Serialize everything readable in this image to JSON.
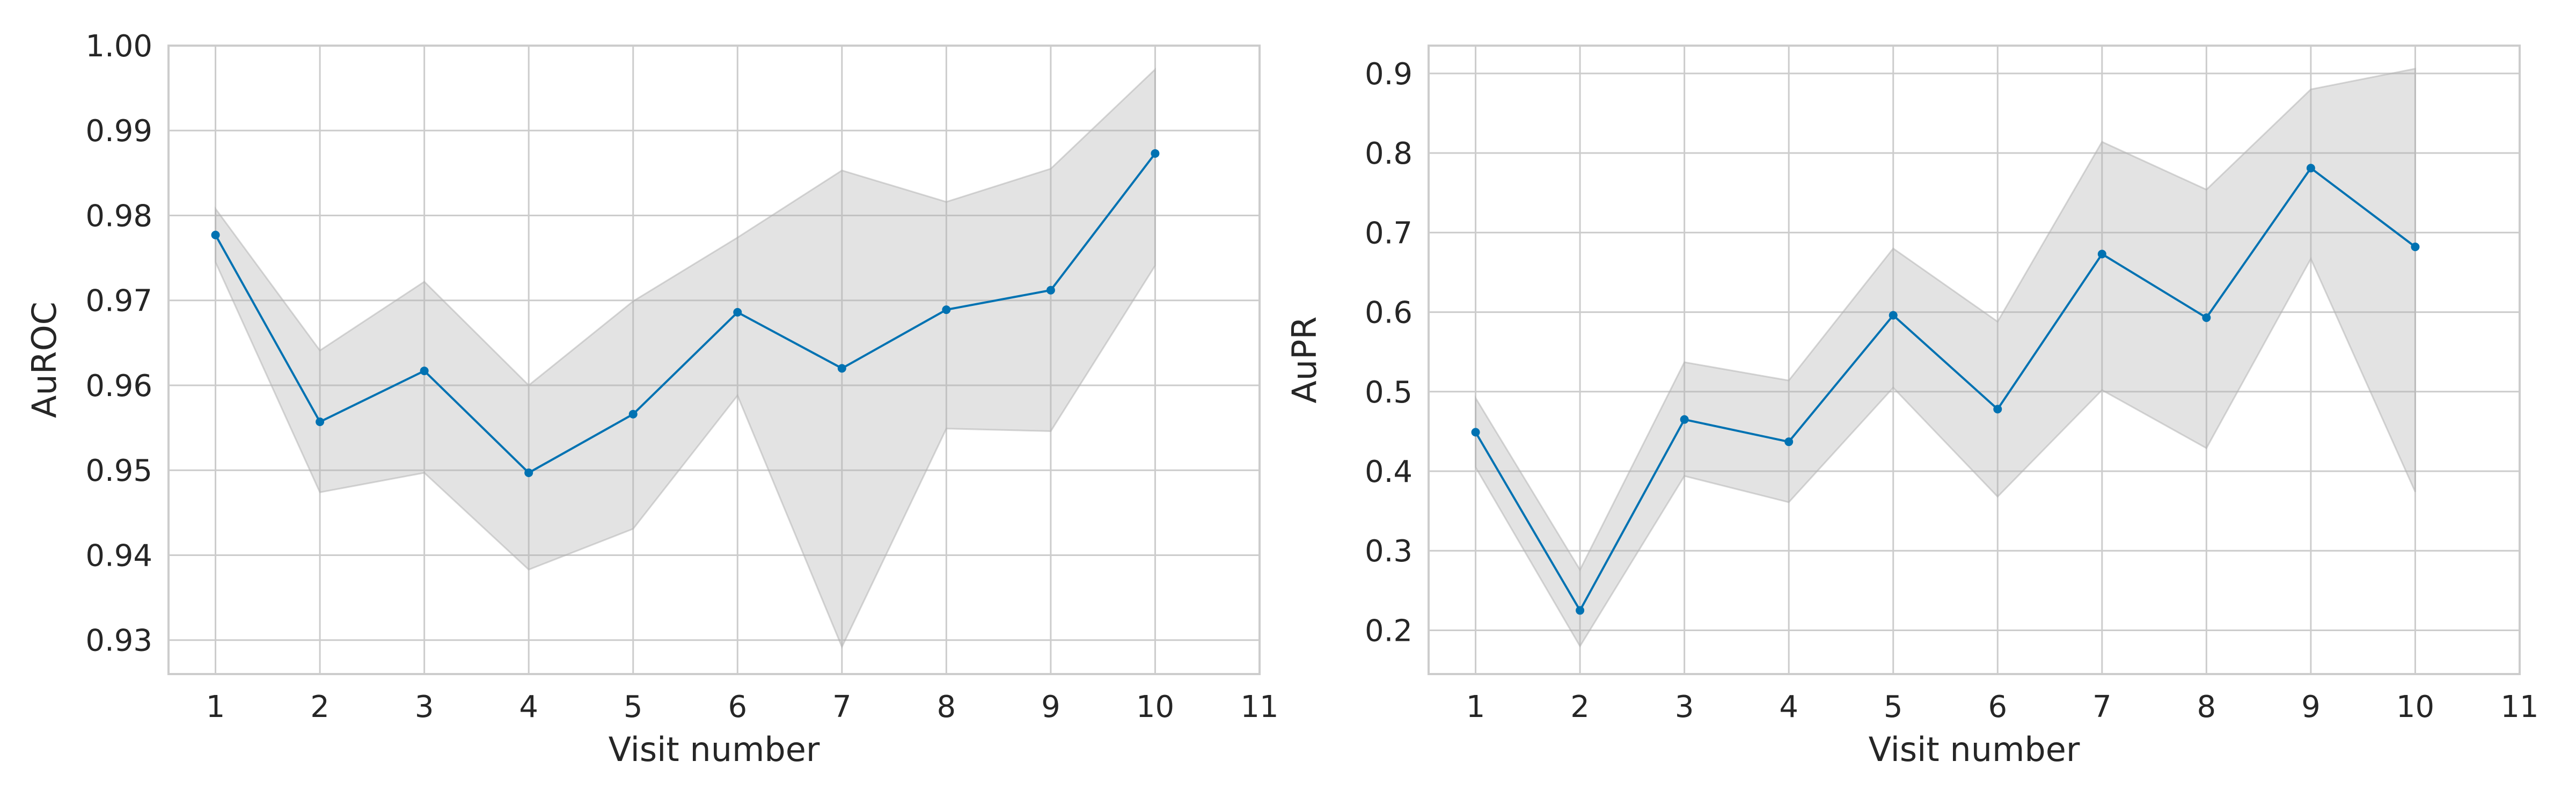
{
  "chart_data": [
    {
      "type": "line",
      "xlabel": "Visit number",
      "ylabel": "AuROC",
      "x": [
        1,
        2,
        3,
        4,
        5,
        6,
        7,
        8,
        9,
        10
      ],
      "xlim": [
        0.55,
        11
      ],
      "xticks": [
        1,
        2,
        3,
        4,
        5,
        6,
        7,
        8,
        9,
        10,
        11
      ],
      "ylim": [
        0.926,
        1.0
      ],
      "yticks": [
        "0.93",
        "0.94",
        "0.95",
        "0.96",
        "0.97",
        "0.98",
        "0.99",
        "1.00"
      ],
      "grid": true,
      "series": [
        {
          "values": [
            0.9777,
            0.9557,
            0.9617,
            0.9497,
            0.9566,
            0.9686,
            0.962,
            0.9689,
            0.9712,
            0.9873
          ],
          "lower": [
            0.9745,
            0.9474,
            0.9497,
            0.9383,
            0.9431,
            0.9588,
            0.9292,
            0.9549,
            0.9546,
            0.9741
          ],
          "upper": [
            0.9808,
            0.9641,
            0.9722,
            0.96,
            0.9699,
            0.9774,
            0.9853,
            0.9816,
            0.9855,
            0.9972
          ],
          "color": "#0072b2",
          "band_color": "#b0b0b0"
        }
      ]
    },
    {
      "type": "line",
      "xlabel": "Visit number",
      "ylabel": "AuPR",
      "x": [
        1,
        2,
        3,
        4,
        5,
        6,
        7,
        8,
        9,
        10
      ],
      "xlim": [
        0.55,
        11
      ],
      "xticks": [
        1,
        2,
        3,
        4,
        5,
        6,
        7,
        8,
        9,
        10,
        11
      ],
      "ylim": [
        0.145,
        0.935
      ],
      "yticks": [
        "0.2",
        "0.3",
        "0.4",
        "0.5",
        "0.6",
        "0.7",
        "0.8",
        "0.9"
      ],
      "grid": true,
      "series": [
        {
          "values": [
            0.449,
            0.225,
            0.465,
            0.437,
            0.596,
            0.478,
            0.673,
            0.593,
            0.781,
            0.682
          ],
          "lower": [
            0.405,
            0.18,
            0.394,
            0.361,
            0.505,
            0.368,
            0.502,
            0.429,
            0.667,
            0.374
          ],
          "upper": [
            0.492,
            0.276,
            0.537,
            0.514,
            0.68,
            0.588,
            0.814,
            0.754,
            0.88,
            0.906
          ],
          "color": "#0072b2",
          "band_color": "#b0b0b0"
        }
      ]
    }
  ]
}
